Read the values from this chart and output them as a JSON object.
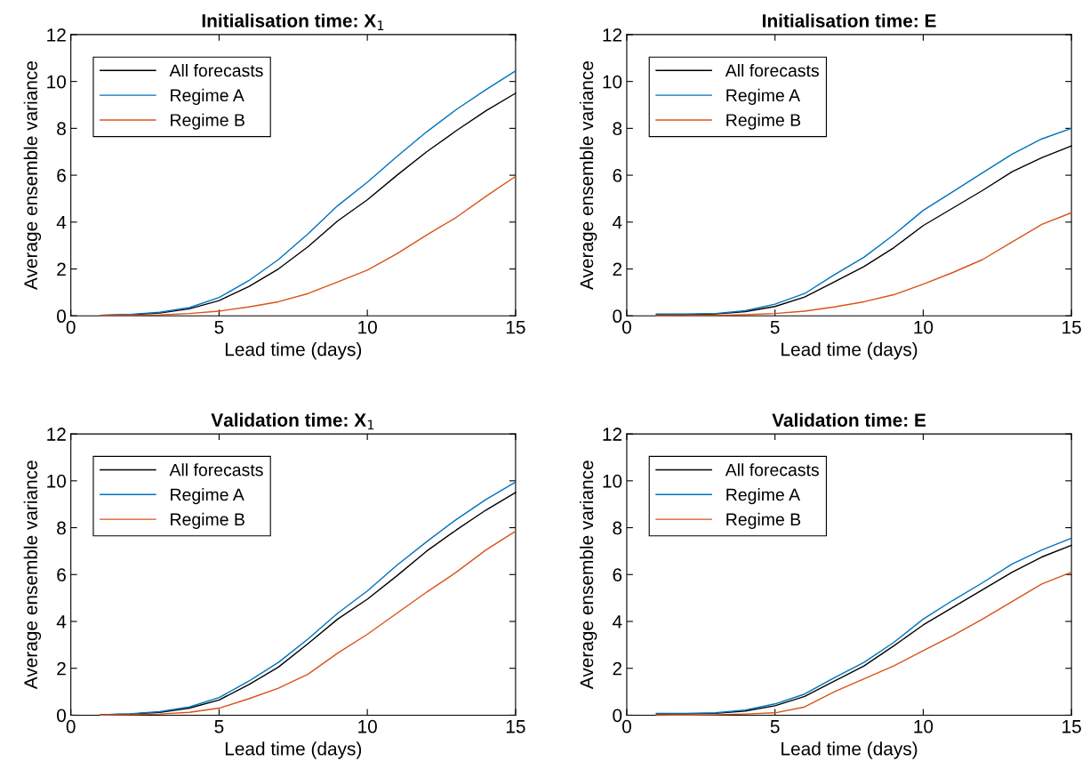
{
  "chart_data": [
    {
      "type": "line",
      "title": "Initialisation time: X$_{1}$",
      "xlabel": "Lead time (days)",
      "ylabel": "Average ensemble variance",
      "x": [
        1,
        2,
        3,
        4,
        5,
        6,
        7,
        8,
        9,
        10,
        11,
        12,
        13,
        14,
        15
      ],
      "xlim": [
        0,
        15
      ],
      "xticks": [
        0,
        5,
        10,
        15
      ],
      "ylim": [
        0,
        12
      ],
      "yticks": [
        0,
        2,
        4,
        6,
        8,
        10,
        12
      ],
      "grid": false,
      "legend": "top left",
      "series": [
        {
          "name": "All forecasts",
          "color": "#000000",
          "values": [
            0.02,
            0.05,
            0.12,
            0.3,
            0.65,
            1.25,
            2.0,
            2.95,
            4.05,
            4.95,
            6.0,
            7.0,
            7.9,
            8.75,
            9.5
          ]
        },
        {
          "name": "Regime A",
          "color": "#0072bd",
          "values": [
            0.02,
            0.06,
            0.15,
            0.35,
            0.78,
            1.5,
            2.4,
            3.5,
            4.7,
            5.7,
            6.8,
            7.85,
            8.8,
            9.65,
            10.45
          ]
        },
        {
          "name": "Regime B",
          "color": "#d95319",
          "values": [
            0.01,
            0.02,
            0.04,
            0.1,
            0.2,
            0.38,
            0.6,
            0.95,
            1.45,
            1.95,
            2.65,
            3.45,
            4.2,
            5.1,
            5.95
          ]
        }
      ]
    },
    {
      "type": "line",
      "title": "Initialisation time: E",
      "xlabel": "Lead time (days)",
      "ylabel": "Average ensemble variance",
      "x": [
        1,
        2,
        3,
        4,
        5,
        6,
        7,
        8,
        9,
        10,
        11,
        12,
        13,
        14,
        15
      ],
      "xlim": [
        0,
        15
      ],
      "xticks": [
        0,
        5,
        10,
        15
      ],
      "ylim": [
        0,
        12
      ],
      "yticks": [
        0,
        2,
        4,
        6,
        8,
        10,
        12
      ],
      "grid": false,
      "legend": "top left",
      "series": [
        {
          "name": "All forecasts",
          "color": "#000000",
          "values": [
            0.05,
            0.05,
            0.08,
            0.18,
            0.4,
            0.8,
            1.45,
            2.1,
            2.9,
            3.85,
            4.6,
            5.35,
            6.15,
            6.75,
            7.25
          ]
        },
        {
          "name": "Regime A",
          "color": "#0072bd",
          "values": [
            0.08,
            0.08,
            0.1,
            0.22,
            0.5,
            0.95,
            1.75,
            2.5,
            3.45,
            4.5,
            5.3,
            6.1,
            6.9,
            7.55,
            8.0
          ]
        },
        {
          "name": "Regime B",
          "color": "#d95319",
          "values": [
            0.0,
            0.01,
            0.02,
            0.05,
            0.1,
            0.2,
            0.38,
            0.6,
            0.9,
            1.35,
            1.85,
            2.4,
            3.15,
            3.9,
            4.4
          ]
        }
      ]
    },
    {
      "type": "line",
      "title": "Validation time: X$_{1}$",
      "xlabel": "Lead time (days)",
      "ylabel": "Average ensemble variance",
      "x": [
        1,
        2,
        3,
        4,
        5,
        6,
        7,
        8,
        9,
        10,
        11,
        12,
        13,
        14,
        15
      ],
      "xlim": [
        0,
        15
      ],
      "xticks": [
        0,
        5,
        10,
        15
      ],
      "ylim": [
        0,
        12
      ],
      "yticks": [
        0,
        2,
        4,
        6,
        8,
        10,
        12
      ],
      "grid": false,
      "legend": "top left",
      "series": [
        {
          "name": "All forecasts",
          "color": "#000000",
          "values": [
            0.02,
            0.05,
            0.12,
            0.3,
            0.65,
            1.3,
            2.05,
            3.05,
            4.1,
            4.95,
            5.95,
            7.0,
            7.9,
            8.75,
            9.5
          ]
        },
        {
          "name": "Regime A",
          "color": "#0072bd",
          "values": [
            0.02,
            0.06,
            0.15,
            0.35,
            0.75,
            1.45,
            2.25,
            3.25,
            4.35,
            5.3,
            6.4,
            7.4,
            8.35,
            9.2,
            9.95
          ]
        },
        {
          "name": "Regime B",
          "color": "#d95319",
          "values": [
            0.01,
            0.02,
            0.05,
            0.12,
            0.3,
            0.7,
            1.15,
            1.75,
            2.65,
            3.45,
            4.35,
            5.25,
            6.1,
            7.05,
            7.85
          ]
        }
      ]
    },
    {
      "type": "line",
      "title": "Validation time: E",
      "xlabel": "Lead time (days)",
      "ylabel": "Average ensemble variance",
      "x": [
        1,
        2,
        3,
        4,
        5,
        6,
        7,
        8,
        9,
        10,
        11,
        12,
        13,
        14,
        15
      ],
      "xlim": [
        0,
        15
      ],
      "xticks": [
        0,
        5,
        10,
        15
      ],
      "ylim": [
        0,
        12
      ],
      "yticks": [
        0,
        2,
        4,
        6,
        8,
        10,
        12
      ],
      "grid": false,
      "legend": "top left",
      "series": [
        {
          "name": "All forecasts",
          "color": "#000000",
          "values": [
            0.05,
            0.05,
            0.08,
            0.18,
            0.4,
            0.8,
            1.45,
            2.1,
            2.95,
            3.85,
            4.6,
            5.35,
            6.1,
            6.75,
            7.25
          ]
        },
        {
          "name": "Regime A",
          "color": "#0072bd",
          "values": [
            0.08,
            0.08,
            0.1,
            0.22,
            0.48,
            0.9,
            1.6,
            2.25,
            3.1,
            4.1,
            4.9,
            5.65,
            6.45,
            7.05,
            7.55
          ]
        },
        {
          "name": "Regime B",
          "color": "#d95319",
          "values": [
            0.0,
            0.01,
            0.02,
            0.05,
            0.1,
            0.35,
            1.0,
            1.55,
            2.1,
            2.75,
            3.4,
            4.1,
            4.85,
            5.6,
            6.1
          ]
        }
      ]
    }
  ]
}
